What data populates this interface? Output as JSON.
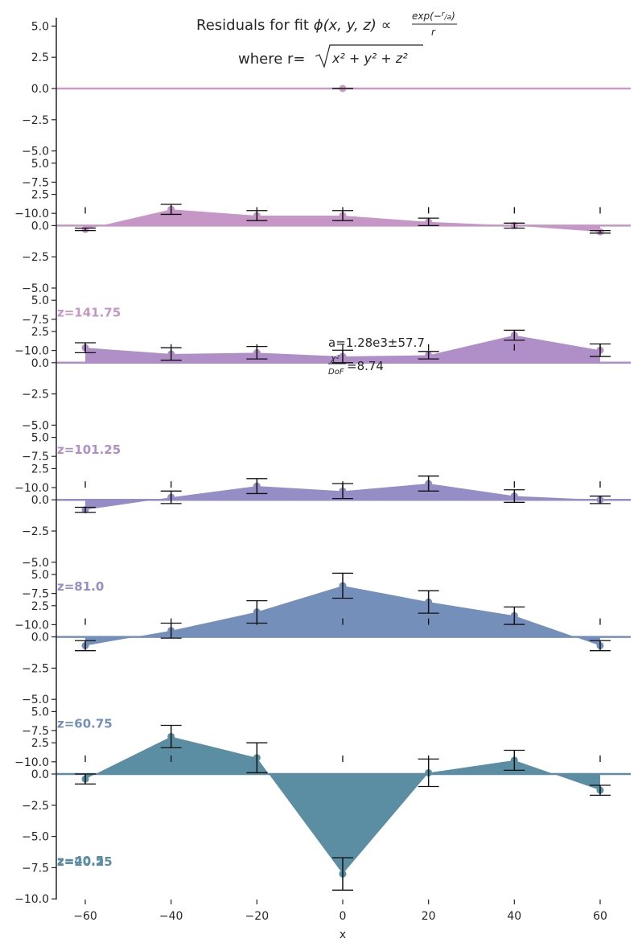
{
  "chart_data": {
    "type": "area",
    "title": {
      "prefix": "Residuals for fit ",
      "lhs": "ϕ(x, y, z) ∝ ",
      "frac_numerator": "exp(−",
      "frac_numerator_r": "r",
      "frac_numerator_a": "a",
      "frac_numerator_close": ")",
      "frac_denominator": "r",
      "line2_prefix": "where r=",
      "line2_radicand": "x² + y² + z²"
    },
    "xlabel": "x",
    "x_ticks": [
      -60,
      -40,
      -20,
      0,
      20,
      40,
      60
    ],
    "y_ticks": [
      5.0,
      2.5,
      0.0,
      -2.5,
      -5.0,
      -7.5,
      -10.0
    ],
    "y_tick_labels": [
      "5.0",
      "2.5",
      "0.0",
      "−2.5",
      "−5.0",
      "−7.5",
      "−10.0"
    ],
    "annotation": {
      "a_text": "a=1.28e3±57.7",
      "chi_num": "χ²",
      "chi_den": "DoF",
      "chi_value": "=8.74"
    },
    "panels": [
      {
        "z_label": "",
        "color": "#c99bc4",
        "x": [
          0
        ],
        "y": [
          0.0
        ],
        "err": [
          0.0
        ]
      },
      {
        "z_label": "z=141.75",
        "color": "#c596c6",
        "x": [
          -60,
          -40,
          -20,
          0,
          20,
          40,
          60
        ],
        "y": [
          -0.3,
          1.3,
          0.8,
          0.8,
          0.3,
          0.0,
          -0.5
        ],
        "err": [
          0.1,
          0.4,
          0.4,
          0.4,
          0.3,
          0.2,
          0.1
        ]
      },
      {
        "z_label": "z=101.25",
        "color": "#b08fc9",
        "x": [
          -60,
          -40,
          -20,
          0,
          20,
          40,
          60
        ],
        "y": [
          1.2,
          0.7,
          0.8,
          0.5,
          0.6,
          2.2,
          1.0
        ],
        "err": [
          0.4,
          0.5,
          0.5,
          0.5,
          0.3,
          0.4,
          0.5
        ]
      },
      {
        "z_label": "z=81.0",
        "color": "#958dc5",
        "x": [
          -60,
          -40,
          -20,
          0,
          20,
          40,
          60
        ],
        "y": [
          -0.8,
          0.2,
          1.1,
          0.7,
          1.3,
          0.3,
          0.0
        ],
        "err": [
          0.2,
          0.5,
          0.6,
          0.6,
          0.6,
          0.5,
          0.3
        ]
      },
      {
        "z_label": "z=60.75",
        "color": "#758fbb",
        "x": [
          -60,
          -40,
          -20,
          0,
          20,
          40,
          60
        ],
        "y": [
          -0.7,
          0.5,
          2.0,
          4.1,
          2.8,
          1.7,
          -0.7
        ],
        "err": [
          0.4,
          0.6,
          0.9,
          1.0,
          0.9,
          0.7,
          0.4
        ]
      },
      {
        "z_label": "z=40.5",
        "color": "#5b8da3",
        "x": [
          -60,
          -40,
          -20,
          0,
          20,
          40,
          60
        ],
        "y": [
          -0.4,
          3.0,
          1.3,
          -8.0,
          0.1,
          1.1,
          -1.3
        ],
        "err": [
          0.4,
          0.9,
          1.2,
          1.3,
          1.1,
          0.8,
          0.4
        ]
      }
    ],
    "bottom_z_label": "z=20.25",
    "xlim": [
      -67,
      67
    ],
    "ylim": [
      -10,
      5.5
    ],
    "grid": false,
    "legend": "none"
  }
}
